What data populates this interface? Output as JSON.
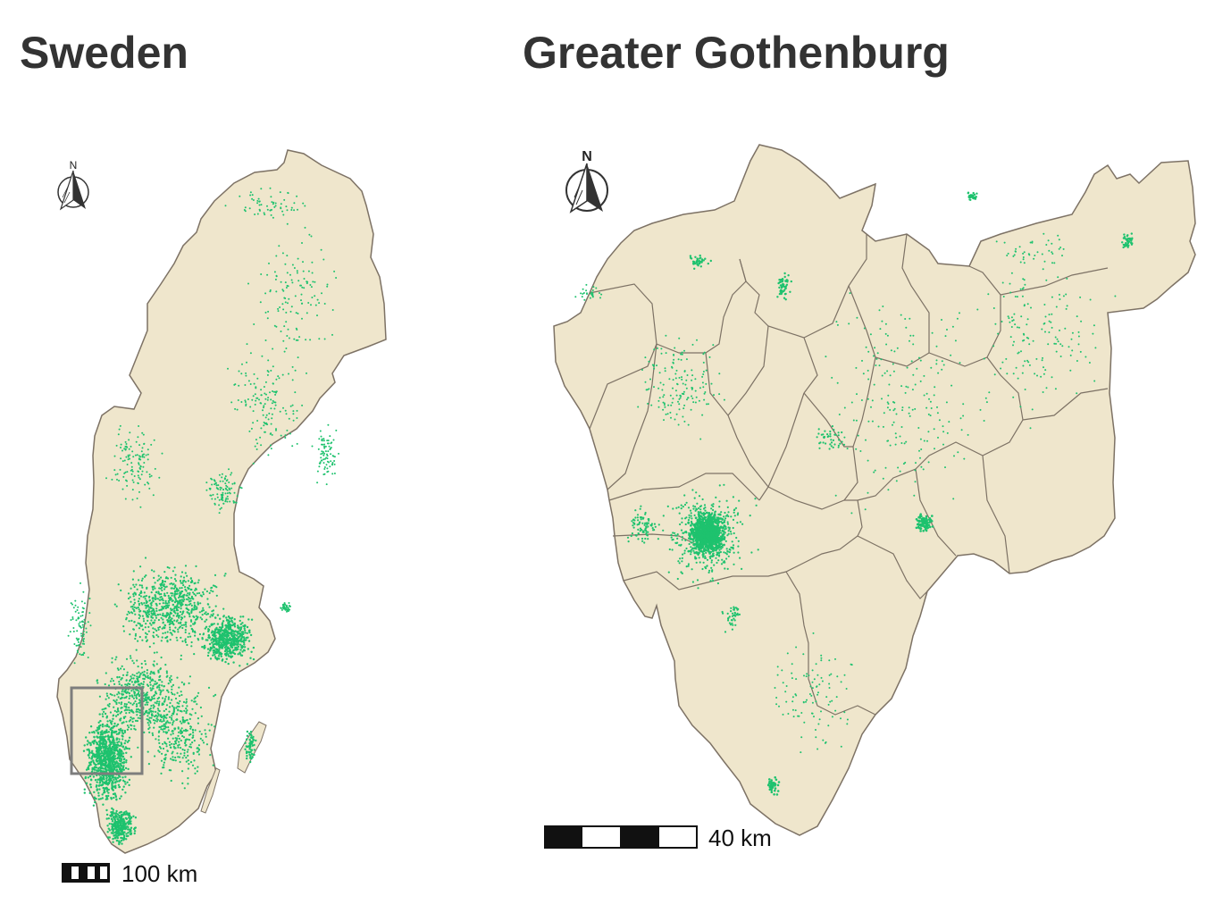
{
  "maps": {
    "sweden": {
      "title": "Sweden",
      "scale_label": "100 km",
      "north_label": "N"
    },
    "gothenburg": {
      "title": "Greater Gothenburg",
      "scale_label": "40 km",
      "north_label": "N"
    }
  },
  "colors": {
    "land": "#efe6cc",
    "border": "#7d7265",
    "points": "#1ec26e",
    "inset_box": "#7d7d7d",
    "title": "#333333"
  },
  "icons": [
    "north-arrow-icon"
  ]
}
